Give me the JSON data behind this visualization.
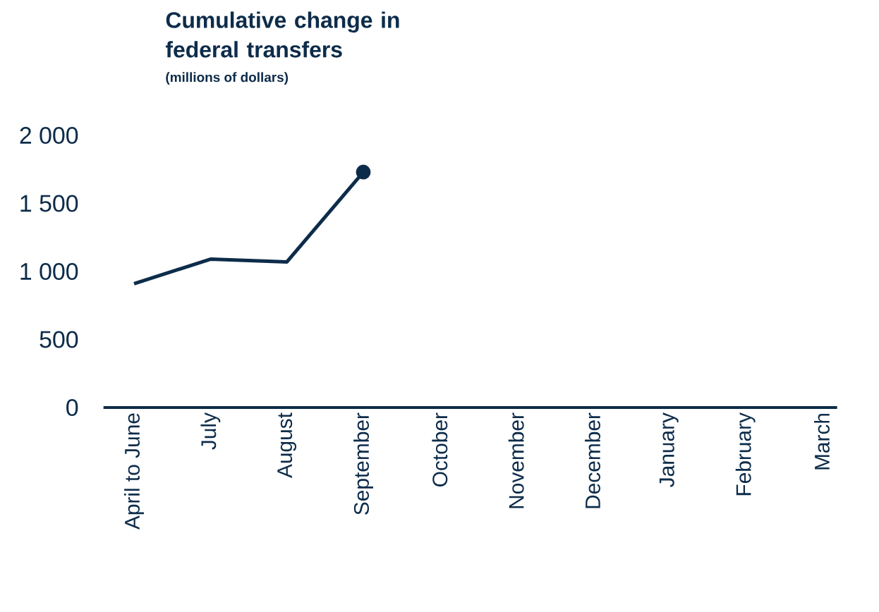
{
  "chart_data": {
    "type": "line",
    "title": "Cumulative change in federal transfers",
    "subtitle": "(millions of dollars)",
    "categories": [
      "April to June",
      "July",
      "August",
      "September",
      "October",
      "November",
      "December",
      "January",
      "February",
      "March"
    ],
    "series": [
      {
        "color": "#0d2c4a",
        "values": [
          910,
          1090,
          1070,
          1730,
          null,
          null,
          null,
          null,
          null,
          null
        ]
      }
    ],
    "ylim": [
      0,
      2000
    ],
    "yticks": [
      0,
      500,
      {
        "value": 1000,
        "label": "1 000"
      },
      {
        "value": 1500,
        "label": "1 500"
      },
      {
        "value": 2000,
        "label": "2 000"
      }
    ],
    "grid": false
  }
}
